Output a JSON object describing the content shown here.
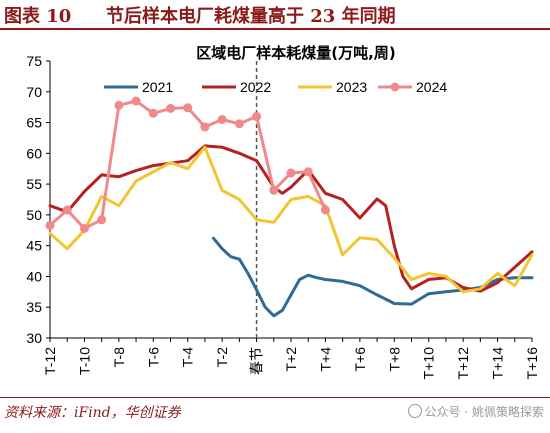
{
  "header": {
    "label": "图表 10",
    "title": "节后样本电厂耗煤量高于 23 年同期"
  },
  "footer": {
    "source": "资料来源：iFind，华创证券",
    "watermark": "公众号 · 姚佩策略探索"
  },
  "colors": {
    "brand": "#8b1a1a",
    "s2021": "#2e6b97",
    "s2022": "#b52121",
    "s2023": "#f2c531",
    "s2024": "#f08a8a",
    "divider": "#555555"
  },
  "chart_data": {
    "type": "line",
    "title": "区域电厂样本耗煤量(万吨,周)",
    "xlabel": "",
    "ylabel": "",
    "ylim": [
      30,
      75
    ],
    "yticks": [
      30,
      35,
      40,
      45,
      50,
      55,
      60,
      65,
      70,
      75
    ],
    "xlim": [
      -12,
      16
    ],
    "xticks": [
      {
        "x": -12,
        "label": "T-12"
      },
      {
        "x": -10,
        "label": "T-10"
      },
      {
        "x": -8,
        "label": "T-8"
      },
      {
        "x": -6,
        "label": "T-6"
      },
      {
        "x": -4,
        "label": "T-4"
      },
      {
        "x": -2,
        "label": "T-2"
      },
      {
        "x": 0,
        "label": "春节"
      },
      {
        "x": 2,
        "label": "T+2"
      },
      {
        "x": 4,
        "label": "T+4"
      },
      {
        "x": 6,
        "label": "T+6"
      },
      {
        "x": 8,
        "label": "T+8"
      },
      {
        "x": 10,
        "label": "T+10"
      },
      {
        "x": 12,
        "label": "T+12"
      },
      {
        "x": 14,
        "label": "T+14"
      },
      {
        "x": 16,
        "label": "T+16"
      }
    ],
    "divider_x": 0,
    "legend_position": "top",
    "grid": false,
    "series": [
      {
        "name": "2021",
        "color": "#2e6b97",
        "markers": false,
        "points": [
          [
            -2.5,
            46.2
          ],
          [
            -2,
            44.5
          ],
          [
            -1.5,
            43.2
          ],
          [
            -1,
            42.8
          ],
          [
            -0.5,
            40.5
          ],
          [
            0,
            37.8
          ],
          [
            0.5,
            35
          ],
          [
            1,
            33.6
          ],
          [
            1.5,
            34.5
          ],
          [
            2,
            37
          ],
          [
            2.5,
            39.5
          ],
          [
            3,
            40.2
          ],
          [
            3.5,
            39.8
          ],
          [
            4,
            39.5
          ],
          [
            5,
            39.2
          ],
          [
            6,
            38.5
          ],
          [
            7,
            37
          ],
          [
            8,
            35.6
          ],
          [
            9,
            35.5
          ],
          [
            10,
            37.2
          ],
          [
            11,
            37.5
          ],
          [
            12,
            37.8
          ],
          [
            13,
            38.2
          ],
          [
            14,
            39.5
          ],
          [
            15,
            39.8
          ],
          [
            16,
            39.8
          ]
        ]
      },
      {
        "name": "2022",
        "color": "#b52121",
        "markers": false,
        "points": [
          [
            -12,
            51.5
          ],
          [
            -11,
            50.5
          ],
          [
            -10,
            53.8
          ],
          [
            -9,
            56.5
          ],
          [
            -8,
            56.2
          ],
          [
            -7,
            57.2
          ],
          [
            -6,
            58
          ],
          [
            -5,
            58.4
          ],
          [
            -4,
            58.8
          ],
          [
            -3,
            61.2
          ],
          [
            -2,
            61
          ],
          [
            -1,
            60
          ],
          [
            0,
            58.8
          ],
          [
            1,
            54.5
          ],
          [
            1.5,
            53.5
          ],
          [
            2,
            54.5
          ],
          [
            3,
            57.3
          ],
          [
            4,
            53.5
          ],
          [
            5,
            52.5
          ],
          [
            6,
            49.5
          ],
          [
            7,
            52.6
          ],
          [
            7.5,
            51.5
          ],
          [
            8,
            45
          ],
          [
            8.5,
            40
          ],
          [
            9,
            38
          ],
          [
            10,
            39.5
          ],
          [
            11,
            39.8
          ],
          [
            12,
            38.2
          ],
          [
            13,
            37.6
          ],
          [
            14,
            39
          ],
          [
            15,
            41.5
          ],
          [
            16,
            44
          ]
        ]
      },
      {
        "name": "2023",
        "color": "#f2c531",
        "markers": false,
        "points": [
          [
            -12,
            47
          ],
          [
            -11,
            44.5
          ],
          [
            -10,
            47.5
          ],
          [
            -9,
            53
          ],
          [
            -8,
            51.5
          ],
          [
            -7,
            55.5
          ],
          [
            -6,
            57
          ],
          [
            -5,
            58.5
          ],
          [
            -4,
            57.5
          ],
          [
            -3,
            61
          ],
          [
            -2,
            54
          ],
          [
            -1,
            52.5
          ],
          [
            0,
            49.2
          ],
          [
            1,
            48.8
          ],
          [
            2,
            52.5
          ],
          [
            3,
            53
          ],
          [
            4,
            51.5
          ],
          [
            5,
            43.5
          ],
          [
            6,
            46.3
          ],
          [
            7,
            46
          ],
          [
            8,
            43
          ],
          [
            9,
            39.5
          ],
          [
            10,
            40.5
          ],
          [
            11,
            40
          ],
          [
            12,
            37.5
          ],
          [
            13,
            38
          ],
          [
            14,
            40.5
          ],
          [
            15,
            38.5
          ],
          [
            16,
            43.5
          ]
        ]
      },
      {
        "name": "2024",
        "color": "#f08a8a",
        "markers": true,
        "points": [
          [
            -12,
            48.3
          ],
          [
            -11,
            50.8
          ],
          [
            -10,
            47.8
          ],
          [
            -9,
            49.2
          ],
          [
            -8,
            67.8
          ],
          [
            -7,
            68.5
          ],
          [
            -6,
            66.5
          ],
          [
            -5,
            67.3
          ],
          [
            -4,
            67.4
          ],
          [
            -3,
            64.3
          ],
          [
            -2,
            65.5
          ],
          [
            -1,
            64.8
          ],
          [
            0,
            66
          ],
          [
            1,
            54
          ],
          [
            2,
            56.8
          ],
          [
            3,
            57
          ],
          [
            4,
            50.8
          ]
        ]
      }
    ]
  }
}
